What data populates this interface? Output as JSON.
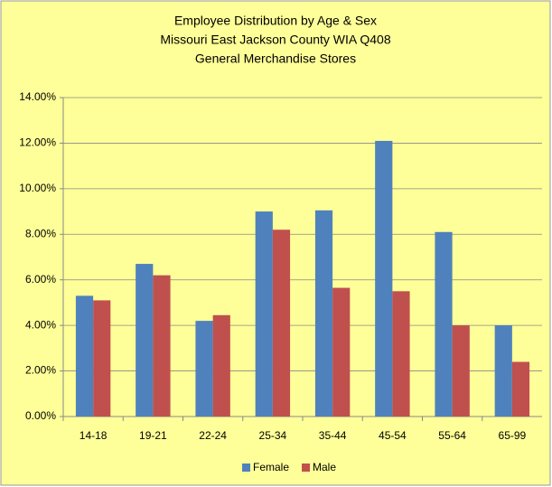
{
  "chart_data": {
    "type": "bar",
    "title": [
      "Employee Distribution by Age & Sex",
      "Missouri East Jackson County WIA Q408",
      "General Merchandise Stores"
    ],
    "categories": [
      "14-18",
      "19-21",
      "22-24",
      "25-34",
      "35-44",
      "45-54",
      "55-64",
      "65-99"
    ],
    "series": [
      {
        "name": "Female",
        "color": "#4f81bd",
        "values": [
          5.3,
          6.7,
          4.2,
          9.0,
          9.05,
          12.1,
          8.1,
          4.0
        ]
      },
      {
        "name": "Male",
        "color": "#c0504d",
        "values": [
          5.1,
          6.2,
          4.45,
          8.2,
          5.65,
          5.5,
          4.0,
          2.4
        ]
      }
    ],
    "ylim": [
      0,
      14
    ],
    "yticks": [
      {
        "value": 0,
        "label": "0.00%"
      },
      {
        "value": 2,
        "label": "2.00%"
      },
      {
        "value": 4,
        "label": "4.00%"
      },
      {
        "value": 6,
        "label": "6.00%"
      },
      {
        "value": 8,
        "label": "8.00%"
      },
      {
        "value": 10,
        "label": "10.00%"
      },
      {
        "value": 12,
        "label": "12.00%"
      },
      {
        "value": 14,
        "label": "14.00%"
      }
    ],
    "grid": true,
    "legend": "bottom"
  }
}
